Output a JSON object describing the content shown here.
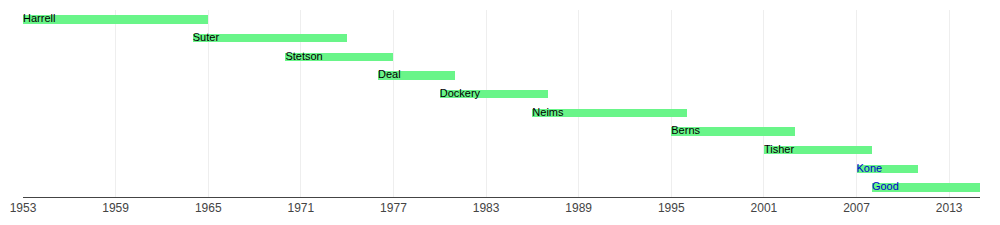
{
  "chart_data": {
    "type": "timeline",
    "categories": [
      "Harrell",
      "Suter",
      "Stetson",
      "Deal",
      "Dockery",
      "Neims",
      "Berns",
      "Tisher",
      "Kone",
      "Good"
    ],
    "start": [
      1953,
      1964,
      1970,
      1976,
      1980,
      1986,
      1995,
      2001,
      2007,
      2008
    ],
    "end": [
      1965,
      1974,
      1977,
      1981,
      1987,
      1996,
      2003,
      2008,
      2011,
      2015
    ],
    "label_colors": [
      "#000000",
      "#000000",
      "#000000",
      "#000000",
      "#000000",
      "#000000",
      "#000000",
      "#000000",
      "#0000cc",
      "#0000cc"
    ],
    "color": "#69f589",
    "orientation": "horizontal",
    "xlim": [
      1953,
      2015
    ],
    "xticks": [
      1953,
      1959,
      1965,
      1971,
      1977,
      1983,
      1989,
      1995,
      2001,
      2007,
      2013
    ],
    "grid": true,
    "tick_labels": "x"
  }
}
